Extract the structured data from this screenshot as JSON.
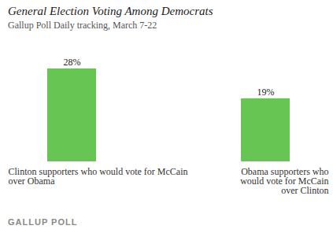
{
  "chart_data": {
    "type": "bar",
    "title": "General Election Voting Among Democrats",
    "subtitle": "Gallup Poll Daily tracking, March 7-22",
    "categories": [
      "Clinton supporters who would vote for McCain\nover Obama",
      "Obama supporters who\nwould vote for McCain\nover Clinton"
    ],
    "values": [
      28,
      19
    ],
    "value_labels": [
      "28%",
      "19%"
    ],
    "color": "#66c553",
    "data_labels": true,
    "tick_labels": "x",
    "grid": false,
    "caption": "GALLUP POLL"
  }
}
